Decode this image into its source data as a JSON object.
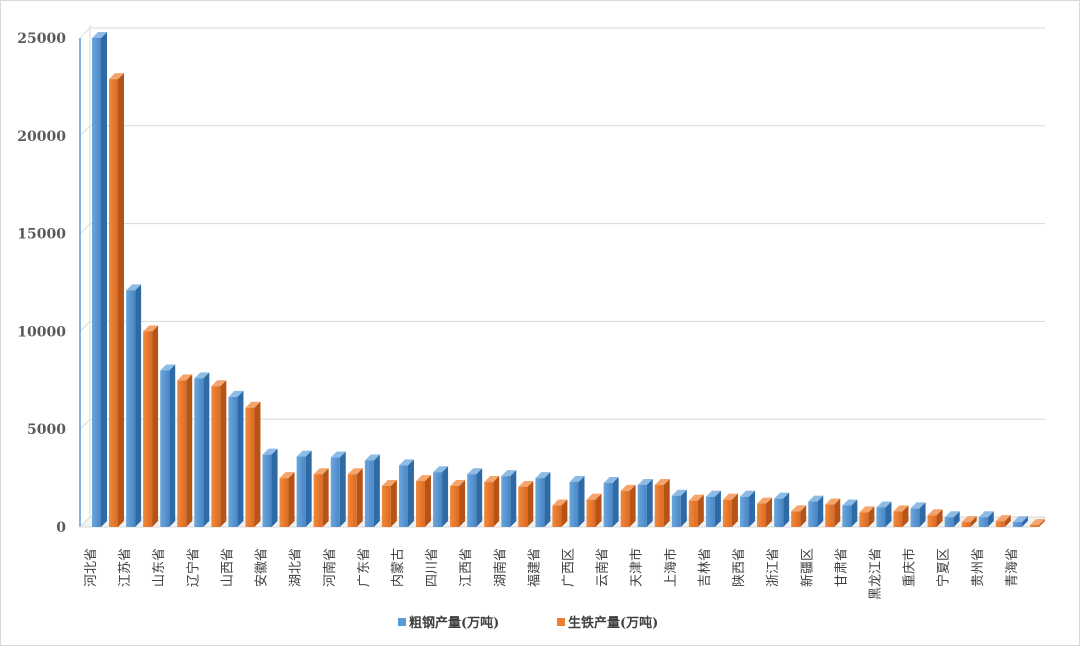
{
  "chart_data": {
    "type": "bar",
    "categories": [
      "河北省",
      "江苏省",
      "山东省",
      "辽宁省",
      "山西省",
      "安徽省",
      "湖北省",
      "河南省",
      "广东省",
      "内蒙古",
      "四川省",
      "江西省",
      "湖南省",
      "福建省",
      "广西区",
      "云南省",
      "天津市",
      "上海市",
      "吉林省",
      "陕西省",
      "浙江省",
      "新疆区",
      "甘肃省",
      "黑龙江省",
      "重庆市",
      "宁夏区",
      "贵州省",
      "青海省"
    ],
    "series": [
      {
        "name": "粗钢产量(万吨)",
        "color": "#5b9bd5",
        "values": [
          25000,
          12100,
          8000,
          7600,
          6650,
          3700,
          3600,
          3550,
          3400,
          3150,
          2800,
          2700,
          2600,
          2500,
          2300,
          2250,
          2150,
          1600,
          1550,
          1550,
          1450,
          1300,
          1100,
          1000,
          950,
          500,
          500,
          250
        ]
      },
      {
        "name": "生铁产量(万吨)",
        "color": "#ed7d31",
        "values": [
          23000,
          10100,
          7600,
          7300,
          6200,
          2600,
          2800,
          2800,
          2200,
          2450,
          2200,
          2400,
          2150,
          1200,
          1500,
          1950,
          2250,
          1450,
          1500,
          1300,
          900,
          1250,
          850,
          900,
          700,
          350,
          400,
          200
        ]
      }
    ],
    "yticks": [
      "0",
      "5000",
      "10000",
      "15000",
      "20000",
      "25000"
    ],
    "ylim": [
      0,
      25000
    ],
    "grid": true,
    "legend_position": "bottom",
    "title": "",
    "xlabel": "",
    "ylabel": ""
  }
}
